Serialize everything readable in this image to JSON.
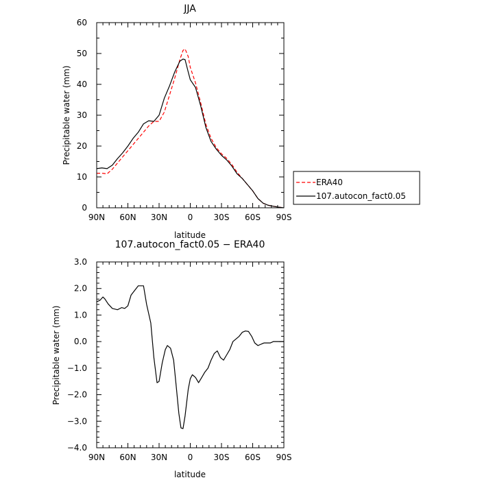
{
  "chart_data": [
    {
      "type": "line",
      "title": "JJA",
      "xlabel": "latitude",
      "ylabel": "Precipitable water (mm)",
      "xlim": [
        90,
        -90
      ],
      "ylim": [
        0,
        60
      ],
      "xticks": [
        90,
        60,
        30,
        0,
        -30,
        -60,
        -90
      ],
      "xticklabels": [
        "90N",
        "60N",
        "30N",
        "0",
        "30S",
        "60S",
        "90S"
      ],
      "yticks": [
        0,
        10,
        20,
        30,
        40,
        50,
        60
      ],
      "yticklabels": [
        "0",
        "10",
        "20",
        "30",
        "40",
        "50",
        "60"
      ],
      "grid": false,
      "legend_position": "right",
      "series": [
        {
          "name": "ERA40",
          "color": "#ff0000",
          "style": "dashed",
          "x": [
            90,
            85,
            80,
            75,
            70,
            65,
            60,
            55,
            50,
            45,
            40,
            35,
            30,
            25,
            20,
            15,
            10,
            7,
            5,
            2,
            0,
            -5,
            -10,
            -15,
            -20,
            -25,
            -30,
            -35,
            -40,
            -45,
            -50,
            -55,
            -60,
            -65,
            -70,
            -75,
            -80,
            -85,
            -90
          ],
          "y": [
            11.2,
            11.2,
            11.0,
            12.5,
            14.5,
            16.5,
            18.5,
            20.5,
            22.5,
            24.5,
            26.5,
            28.0,
            28.0,
            31.0,
            36.5,
            42.0,
            48.0,
            51.0,
            51.5,
            49.0,
            45.5,
            40.5,
            34.0,
            27.0,
            22.5,
            19.5,
            17.5,
            16.0,
            14.0,
            11.5,
            9.5,
            7.5,
            5.5,
            3.0,
            1.5,
            0.8,
            0.5,
            0.2,
            0.0
          ]
        },
        {
          "name": "107.autocon_fact0.05",
          "color": "#000000",
          "style": "solid",
          "x": [
            90,
            85,
            80,
            75,
            70,
            65,
            60,
            55,
            50,
            45,
            40,
            35,
            30,
            25,
            20,
            15,
            10,
            7,
            5,
            2,
            0,
            -5,
            -10,
            -15,
            -20,
            -25,
            -30,
            -35,
            -40,
            -45,
            -50,
            -55,
            -60,
            -65,
            -70,
            -75,
            -80,
            -85,
            -90
          ],
          "y": [
            12.7,
            12.9,
            12.7,
            13.8,
            15.9,
            17.8,
            20.0,
            22.5,
            24.5,
            27.2,
            28.2,
            28.0,
            30.0,
            35.5,
            39.5,
            44.0,
            47.5,
            48.2,
            48.0,
            44.0,
            41.5,
            39.0,
            33.0,
            26.0,
            21.5,
            19.0,
            17.0,
            15.5,
            13.5,
            11.0,
            9.5,
            7.5,
            5.5,
            3.0,
            1.5,
            0.8,
            0.5,
            0.2,
            0.0
          ]
        }
      ]
    },
    {
      "type": "line",
      "title": "107.autocon_fact0.05 − ERA40",
      "xlabel": "latitude",
      "ylabel": "Precipitable water (mm)",
      "xlim": [
        90,
        -90
      ],
      "ylim": [
        -4,
        3
      ],
      "xticks": [
        90,
        60,
        30,
        0,
        -30,
        -60,
        -90
      ],
      "xticklabels": [
        "90N",
        "60N",
        "30N",
        "0",
        "30S",
        "60S",
        "90S"
      ],
      "yticks": [
        3,
        2,
        1,
        0,
        -1,
        -2,
        -3,
        -4
      ],
      "yticklabels": [
        "3.0",
        "2.0",
        "1.0",
        "0.0",
        "−1.0",
        "−2.0",
        "−3.0",
        "−4.0"
      ],
      "grid": false,
      "series": [
        {
          "color": "#000000",
          "style": "solid",
          "x": [
            90,
            87,
            84,
            82,
            79,
            75,
            70,
            66,
            63,
            60,
            57,
            53,
            50,
            45,
            42,
            38,
            35,
            32,
            30,
            27,
            24,
            22,
            19,
            16,
            14,
            11,
            9,
            7,
            5,
            2,
            0,
            -2,
            -5,
            -8,
            -11,
            -14,
            -17,
            -20,
            -23,
            -26,
            -29,
            -32,
            -35,
            -38,
            -41,
            -44,
            -47,
            -50,
            -53,
            -56,
            -59,
            -62,
            -65,
            -68,
            -71,
            -74,
            -77,
            -80,
            -83,
            -86,
            -90
          ],
          "y": [
            1.5,
            1.55,
            1.68,
            1.6,
            1.42,
            1.25,
            1.2,
            1.28,
            1.25,
            1.35,
            1.75,
            1.95,
            2.1,
            2.1,
            1.4,
            0.7,
            -0.6,
            -1.55,
            -1.5,
            -0.8,
            -0.3,
            -0.15,
            -0.25,
            -0.7,
            -1.5,
            -2.7,
            -3.25,
            -3.28,
            -2.8,
            -1.8,
            -1.4,
            -1.25,
            -1.35,
            -1.55,
            -1.35,
            -1.15,
            -1.0,
            -0.7,
            -0.45,
            -0.35,
            -0.6,
            -0.7,
            -0.5,
            -0.3,
            0.0,
            0.1,
            0.2,
            0.35,
            0.4,
            0.38,
            0.2,
            -0.05,
            -0.15,
            -0.1,
            -0.05,
            -0.05,
            -0.05,
            0.0,
            0.0,
            0.0,
            0.0
          ]
        }
      ]
    }
  ]
}
